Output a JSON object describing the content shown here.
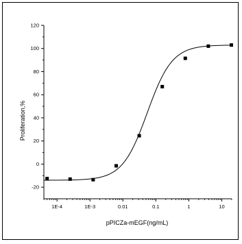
{
  "chart_data": {
    "type": "scatter",
    "title": "",
    "xlabel": "pPICZa-mEGF(ng/mL)",
    "ylabel": "Proliferation,%",
    "x_scale": "log",
    "xlim": [
      4e-05,
      20
    ],
    "ylim": [
      -30,
      120
    ],
    "x_ticks": [
      {
        "value": 0.0001,
        "label": "1E-4"
      },
      {
        "value": 0.001,
        "label": "1E-3"
      },
      {
        "value": 0.01,
        "label": "0.01"
      },
      {
        "value": 0.1,
        "label": "0.1"
      },
      {
        "value": 1,
        "label": "1"
      },
      {
        "value": 10,
        "label": "10"
      }
    ],
    "y_ticks": [
      -20,
      0,
      20,
      40,
      60,
      80,
      100,
      120
    ],
    "grid": false,
    "legend": "none",
    "colors": {
      "points": "#000000",
      "curve": "#000000",
      "axis": "#000000"
    },
    "series": [
      {
        "x": [
          5e-05,
          0.00025,
          0.00125,
          0.00625,
          0.03125,
          0.15625,
          0.78125,
          3.90625,
          19.53125
        ],
        "y": [
          -12.5,
          -13,
          -13.5,
          -1.5,
          24.5,
          67,
          91.5,
          102,
          103
        ]
      }
    ],
    "fit": {
      "type": "sigmoidal",
      "bottom": -14,
      "top": 103,
      "log_ec50": -1.26,
      "hill_slope": 1.15
    }
  }
}
